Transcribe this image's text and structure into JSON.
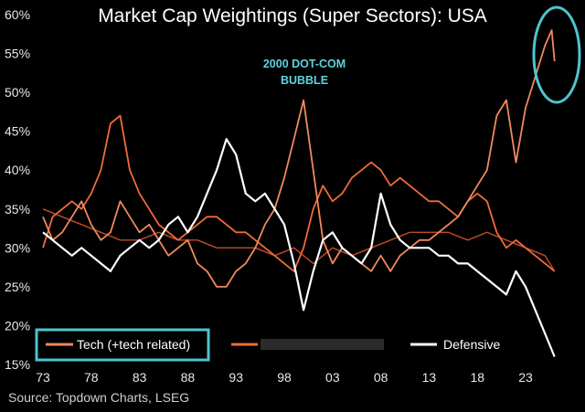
{
  "chart_data": {
    "type": "line",
    "title": "Market Cap Weightings (Super Sectors): USA",
    "source": "Source: Topdown Charts, LSEG",
    "annotation": {
      "line1": "2000 DOT-COM",
      "line2": "BUBBLE"
    },
    "xlabel": "",
    "ylabel": "",
    "x_tick_labels": [
      "73",
      "78",
      "83",
      "88",
      "93",
      "98",
      "03",
      "08",
      "13",
      "18",
      "23"
    ],
    "x_tick_years": [
      1973,
      1978,
      1983,
      1988,
      1993,
      1998,
      2003,
      2008,
      2013,
      2018,
      2023
    ],
    "xlim": [
      1973,
      2026.5
    ],
    "y_tick_labels": [
      "15%",
      "20%",
      "25%",
      "30%",
      "35%",
      "40%",
      "45%",
      "50%",
      "55%",
      "60%"
    ],
    "y_tick_values": [
      15,
      20,
      25,
      30,
      35,
      40,
      45,
      50,
      55,
      60
    ],
    "ylim": [
      15,
      60
    ],
    "legend_placement": "bottom",
    "grid": false,
    "series": [
      {
        "name": "Tech (+tech related)",
        "color": "#f08a5d",
        "points": [
          [
            1973,
            34
          ],
          [
            1974,
            31
          ],
          [
            1975,
            32
          ],
          [
            1976,
            34
          ],
          [
            1977,
            36
          ],
          [
            1978,
            33
          ],
          [
            1979,
            31
          ],
          [
            1980,
            32
          ],
          [
            1981,
            36
          ],
          [
            1982,
            34
          ],
          [
            1983,
            32
          ],
          [
            1984,
            33
          ],
          [
            1985,
            31
          ],
          [
            1986,
            29
          ],
          [
            1987,
            30
          ],
          [
            1988,
            31
          ],
          [
            1989,
            28
          ],
          [
            1990,
            27
          ],
          [
            1991,
            25
          ],
          [
            1992,
            25
          ],
          [
            1993,
            27
          ],
          [
            1994,
            28
          ],
          [
            1995,
            30
          ],
          [
            1996,
            33
          ],
          [
            1997,
            35
          ],
          [
            1998,
            39
          ],
          [
            1999,
            44
          ],
          [
            2000,
            49
          ],
          [
            2001,
            40
          ],
          [
            2002,
            31
          ],
          [
            2003,
            28
          ],
          [
            2004,
            30
          ],
          [
            2005,
            29
          ],
          [
            2006,
            28
          ],
          [
            2007,
            27
          ],
          [
            2008,
            29
          ],
          [
            2009,
            27
          ],
          [
            2010,
            29
          ],
          [
            2011,
            30
          ],
          [
            2012,
            31
          ],
          [
            2013,
            31
          ],
          [
            2014,
            32
          ],
          [
            2015,
            33
          ],
          [
            2016,
            34
          ],
          [
            2017,
            36
          ],
          [
            2018,
            38
          ],
          [
            2019,
            40
          ],
          [
            2020,
            47
          ],
          [
            2021,
            49
          ],
          [
            2022,
            41
          ],
          [
            2023,
            48
          ],
          [
            2024,
            52
          ],
          [
            2025,
            56
          ],
          [
            2025.7,
            58
          ],
          [
            2026,
            54
          ]
        ]
      },
      {
        "name": "",
        "color": "#f26b3a",
        "points": [
          [
            1973,
            30
          ],
          [
            1974,
            34
          ],
          [
            1975,
            35
          ],
          [
            1976,
            36
          ],
          [
            1977,
            35
          ],
          [
            1978,
            37
          ],
          [
            1979,
            40
          ],
          [
            1980,
            46
          ],
          [
            1981,
            47
          ],
          [
            1982,
            40
          ],
          [
            1983,
            37
          ],
          [
            1984,
            35
          ],
          [
            1985,
            33
          ],
          [
            1986,
            32
          ],
          [
            1987,
            31
          ],
          [
            1988,
            32
          ],
          [
            1989,
            33
          ],
          [
            1990,
            34
          ],
          [
            1991,
            34
          ],
          [
            1992,
            33
          ],
          [
            1993,
            32
          ],
          [
            1994,
            32
          ],
          [
            1995,
            31
          ],
          [
            1996,
            30
          ],
          [
            1997,
            29
          ],
          [
            1998,
            28
          ],
          [
            1999,
            27
          ],
          [
            2000,
            30
          ],
          [
            2001,
            35
          ],
          [
            2002,
            38
          ],
          [
            2003,
            36
          ],
          [
            2004,
            37
          ],
          [
            2005,
            39
          ],
          [
            2006,
            40
          ],
          [
            2007,
            41
          ],
          [
            2008,
            40
          ],
          [
            2009,
            38
          ],
          [
            2010,
            39
          ],
          [
            2011,
            38
          ],
          [
            2012,
            37
          ],
          [
            2013,
            36
          ],
          [
            2014,
            36
          ],
          [
            2015,
            35
          ],
          [
            2016,
            34
          ],
          [
            2017,
            36
          ],
          [
            2018,
            37
          ],
          [
            2019,
            36
          ],
          [
            2020,
            32
          ],
          [
            2021,
            30
          ],
          [
            2022,
            31
          ],
          [
            2023,
            30
          ],
          [
            2024,
            29
          ],
          [
            2025,
            28
          ],
          [
            2026,
            27
          ]
        ]
      },
      {
        "name": "Defensive",
        "color": "#ffffff",
        "points": [
          [
            1973,
            32
          ],
          [
            1974,
            31
          ],
          [
            1975,
            30
          ],
          [
            1976,
            29
          ],
          [
            1977,
            30
          ],
          [
            1978,
            29
          ],
          [
            1979,
            28
          ],
          [
            1980,
            27
          ],
          [
            1981,
            29
          ],
          [
            1982,
            30
          ],
          [
            1983,
            31
          ],
          [
            1984,
            30
          ],
          [
            1985,
            31
          ],
          [
            1986,
            33
          ],
          [
            1987,
            34
          ],
          [
            1988,
            32
          ],
          [
            1989,
            34
          ],
          [
            1990,
            37
          ],
          [
            1991,
            40
          ],
          [
            1992,
            44
          ],
          [
            1993,
            42
          ],
          [
            1994,
            37
          ],
          [
            1995,
            36
          ],
          [
            1996,
            37
          ],
          [
            1997,
            35
          ],
          [
            1998,
            33
          ],
          [
            1999,
            28
          ],
          [
            2000,
            22
          ],
          [
            2001,
            27
          ],
          [
            2002,
            31
          ],
          [
            2003,
            32
          ],
          [
            2004,
            30
          ],
          [
            2005,
            29
          ],
          [
            2006,
            28
          ],
          [
            2007,
            30
          ],
          [
            2008,
            37
          ],
          [
            2009,
            33
          ],
          [
            2010,
            31
          ],
          [
            2011,
            30
          ],
          [
            2012,
            30
          ],
          [
            2013,
            30
          ],
          [
            2014,
            29
          ],
          [
            2015,
            29
          ],
          [
            2016,
            28
          ],
          [
            2017,
            28
          ],
          [
            2018,
            27
          ],
          [
            2019,
            26
          ],
          [
            2020,
            25
          ],
          [
            2021,
            24
          ],
          [
            2022,
            27
          ],
          [
            2023,
            25
          ],
          [
            2024,
            22
          ],
          [
            2025,
            19
          ],
          [
            2026,
            16
          ]
        ]
      },
      {
        "name": "",
        "color": "#c24a28",
        "points": [
          [
            1973,
            35
          ],
          [
            1975,
            34
          ],
          [
            1977,
            33
          ],
          [
            1979,
            32
          ],
          [
            1981,
            31
          ],
          [
            1983,
            31
          ],
          [
            1985,
            32
          ],
          [
            1987,
            31
          ],
          [
            1989,
            31
          ],
          [
            1991,
            30
          ],
          [
            1993,
            30
          ],
          [
            1995,
            30
          ],
          [
            1997,
            29
          ],
          [
            1999,
            30
          ],
          [
            2001,
            28
          ],
          [
            2003,
            30
          ],
          [
            2005,
            29
          ],
          [
            2007,
            30
          ],
          [
            2009,
            31
          ],
          [
            2011,
            32
          ],
          [
            2013,
            32
          ],
          [
            2015,
            32
          ],
          [
            2017,
            31
          ],
          [
            2019,
            32
          ],
          [
            2021,
            31
          ],
          [
            2023,
            30
          ],
          [
            2025,
            29
          ],
          [
            2026,
            27
          ]
        ]
      }
    ],
    "legend": [
      {
        "label": "Tech (+tech related)",
        "color": "#f08a5d"
      },
      {
        "label": "",
        "color": "#f26b3a"
      },
      {
        "label": "Defensive",
        "color": "#ffffff"
      }
    ],
    "colors": {
      "background": "#000000",
      "highlight": "#4fc3cf"
    }
  }
}
